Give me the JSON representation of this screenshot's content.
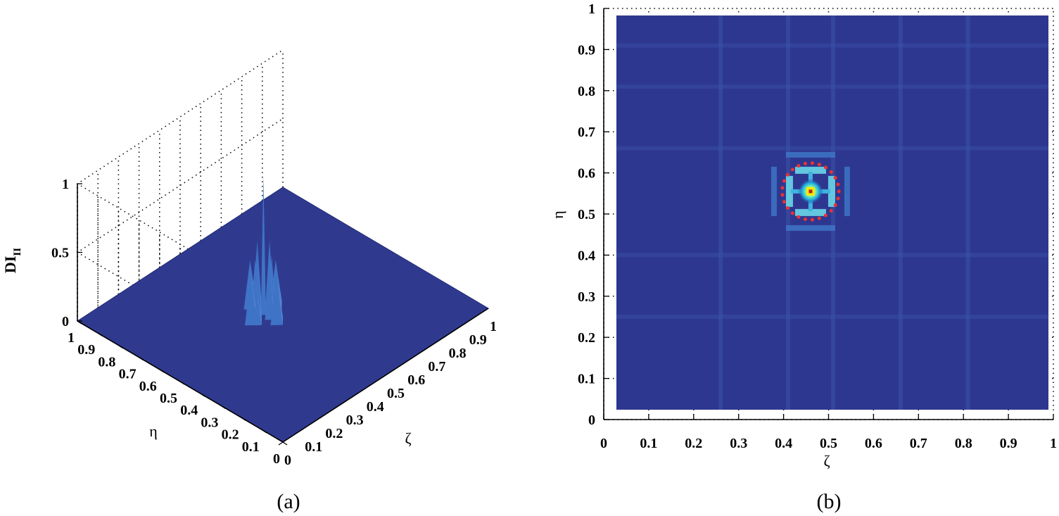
{
  "chart_data": [
    {
      "type": "surface3d",
      "caption": "(a)",
      "xlabel": "ζ",
      "ylabel": "η",
      "zlabel": "DI",
      "zlabel_subscript": "II",
      "xlim": [
        0,
        1
      ],
      "ylim": [
        0,
        1
      ],
      "zlim": [
        0,
        1
      ],
      "x_ticks": [
        "0",
        "0.1",
        "0.2",
        "0.3",
        "0.4",
        "0.5",
        "0.6",
        "0.7",
        "0.8",
        "0.9",
        "1"
      ],
      "y_ticks": [
        "0",
        "0.1",
        "0.2",
        "0.3",
        "0.4",
        "0.5",
        "0.6",
        "0.7",
        "0.8",
        "0.9",
        "1"
      ],
      "z_ticks": [
        "0",
        "0.5",
        "1"
      ],
      "grid": true,
      "peak": {
        "x": 0.46,
        "y": 0.555,
        "z": 1.0
      },
      "side_lobes": [
        {
          "x": 0.4,
          "y": 0.555,
          "z": 0.33
        },
        {
          "x": 0.52,
          "y": 0.555,
          "z": 0.33
        },
        {
          "x": 0.46,
          "y": 0.49,
          "z": 0.33
        },
        {
          "x": 0.46,
          "y": 0.62,
          "z": 0.33
        }
      ],
      "surface_color": "#2f3a8f"
    },
    {
      "type": "heatmap",
      "caption": "(b)",
      "xlabel": "ζ",
      "ylabel": "η",
      "xlim": [
        0,
        1
      ],
      "ylim": [
        0,
        1
      ],
      "x_ticks": [
        "0",
        "0.1",
        "0.2",
        "0.3",
        "0.4",
        "0.5",
        "0.6",
        "0.7",
        "0.8",
        "0.9",
        "1"
      ],
      "y_ticks": [
        "0",
        "0.1",
        "0.2",
        "0.3",
        "0.4",
        "0.5",
        "0.6",
        "0.7",
        "0.8",
        "0.9",
        "1"
      ],
      "grid": true,
      "colormap": "jet",
      "background_color": "#2e3790",
      "peak": {
        "x": 0.46,
        "y": 0.555,
        "value": 1.0
      },
      "highlight_circle": {
        "cx": 0.46,
        "cy": 0.555,
        "r": 0.063,
        "color": "#e83232",
        "style": "dotted"
      },
      "faint_vertical_lines_x": [
        0.26,
        0.41,
        0.51,
        0.66,
        0.81
      ],
      "faint_horizontal_lines_y": [
        0.25,
        0.4,
        0.66,
        0.81,
        0.91
      ]
    }
  ]
}
